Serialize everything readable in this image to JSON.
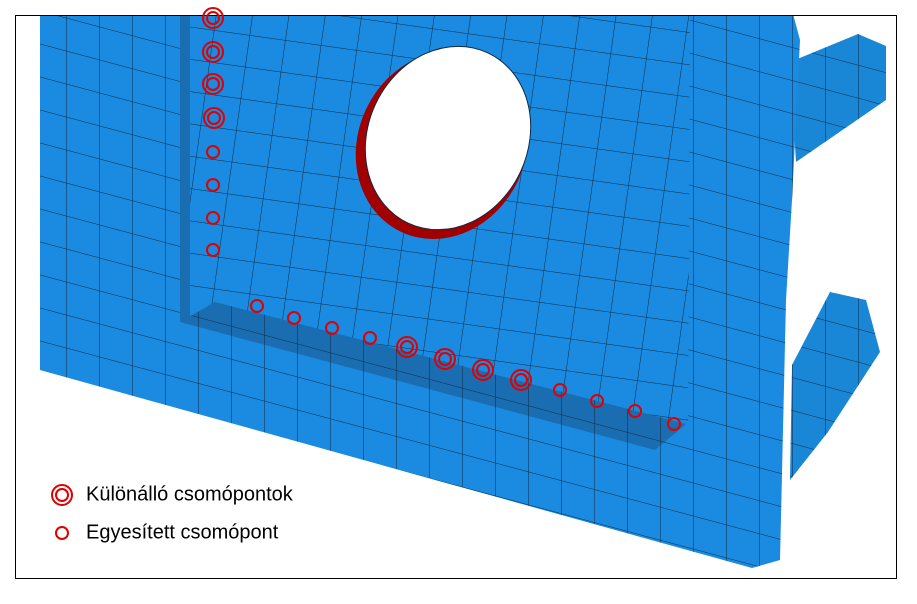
{
  "legend": {
    "items": [
      {
        "label": "Különálló csomópontok"
      },
      {
        "label": "Egyesített csomópont"
      }
    ]
  }
}
